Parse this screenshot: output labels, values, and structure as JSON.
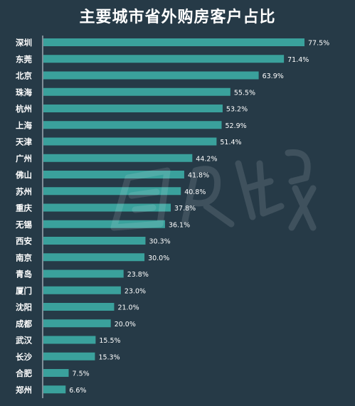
{
  "chart_data": {
    "type": "bar",
    "orientation": "horizontal",
    "title": "主要城市省外购房客户占比",
    "categories": [
      "深圳",
      "东莞",
      "北京",
      "珠海",
      "杭州",
      "上海",
      "天津",
      "广州",
      "佛山",
      "苏州",
      "重庆",
      "无锡",
      "西安",
      "南京",
      "青岛",
      "厦门",
      "沈阳",
      "成都",
      "武汉",
      "长沙",
      "合肥",
      "郑州"
    ],
    "values": [
      77.5,
      71.4,
      63.9,
      55.5,
      53.2,
      52.9,
      51.4,
      44.2,
      41.8,
      40.8,
      37.8,
      36.1,
      30.3,
      30.0,
      23.8,
      23.0,
      21.0,
      20.0,
      15.5,
      15.3,
      7.5,
      6.6
    ],
    "value_labels": [
      "77.5%",
      "71.4%",
      "63.9%",
      "55.5%",
      "53.2%",
      "52.9%",
      "51.4%",
      "44.2%",
      "41.8%",
      "40.8%",
      "37.8%",
      "36.1%",
      "30.3%",
      "30.0%",
      "23.8%",
      "23.0%",
      "21.0%",
      "20.0%",
      "15.5%",
      "15.3%",
      "7.5%",
      "6.6%"
    ],
    "unit": "%",
    "xlim": [
      0,
      77.5
    ],
    "grid": false,
    "legend": "none",
    "colors": {
      "background": "#263a47",
      "bar": "#3aa19c",
      "text": "#ffffff"
    }
  }
}
